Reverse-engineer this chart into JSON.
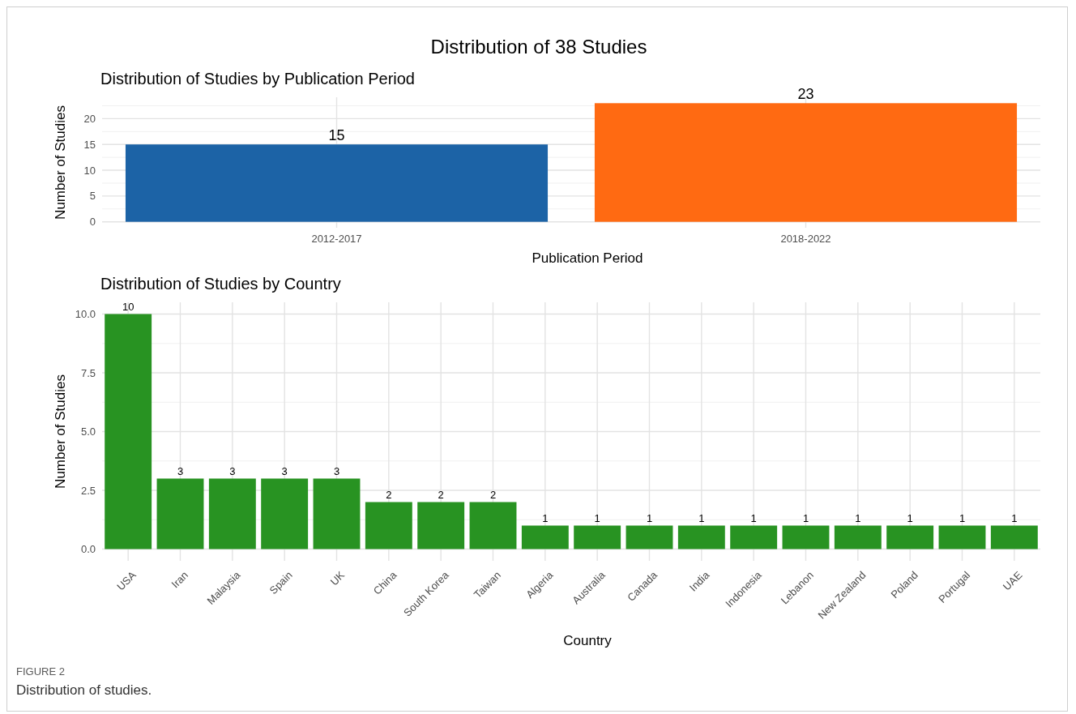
{
  "chart_data": [
    {
      "type": "bar",
      "title": "Distribution of 38 Studies",
      "subtitle": "Distribution of Studies by Publication Period",
      "xlabel": "Publication Period",
      "ylabel": "Number of Studies",
      "categories": [
        "2012-2017",
        "2018-2022"
      ],
      "values": [
        15,
        23
      ],
      "colors": [
        "#1c63a6",
        "#ff6a12"
      ],
      "ylim": [
        -1.15,
        24.15
      ],
      "yticks": [
        0,
        5,
        10,
        15,
        20
      ],
      "grid": true,
      "data_labels": true
    },
    {
      "type": "bar",
      "title": "Distribution of Studies by Country",
      "xlabel": "Country",
      "ylabel": "Number of Studies",
      "categories": [
        "USA",
        "Iran",
        "Malaysia",
        "Spain",
        "UK",
        "China",
        "South Korea",
        "Taiwan",
        "Algeria",
        "Australia",
        "Canada",
        "India",
        "Indonesia",
        "Lebanon",
        "New Zealand",
        "Poland",
        "Portugal",
        "UAE"
      ],
      "values": [
        10,
        3,
        3,
        3,
        3,
        2,
        2,
        2,
        1,
        1,
        1,
        1,
        1,
        1,
        1,
        1,
        1,
        1
      ],
      "color": "#289322",
      "ylim": [
        -0.5,
        10.5
      ],
      "yticks": [
        {
          "value": 0,
          "label": "0.0"
        },
        {
          "value": 2.5,
          "label": "2.5"
        },
        {
          "value": 5,
          "label": "5.0"
        },
        {
          "value": 7.5,
          "label": "7.5"
        },
        {
          "value": 10,
          "label": "10.0"
        }
      ],
      "grid": true,
      "data_labels": true,
      "annotations": [
        "FIGURE 2",
        "Distribution of studies."
      ]
    }
  ]
}
